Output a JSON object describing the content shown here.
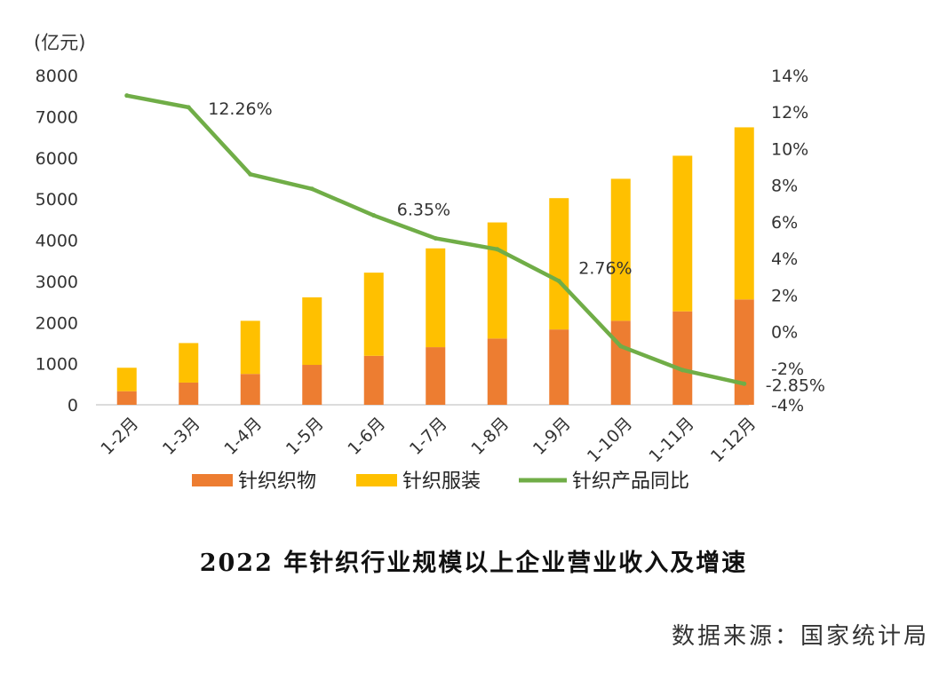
{
  "chart_data": {
    "type": "bar",
    "stacked": true,
    "categories": [
      "1-2月",
      "1-3月",
      "1-4月",
      "1-5月",
      "1-6月",
      "1-7月",
      "1-8月",
      "1-9月",
      "1-10月",
      "1-11月",
      "1-12月"
    ],
    "series": [
      {
        "name": "针织织物",
        "type": "bar",
        "axis": "left",
        "color": "#ED7D31",
        "values": [
          330,
          540,
          750,
          970,
          1190,
          1400,
          1610,
          1830,
          2040,
          2270,
          2560
        ]
      },
      {
        "name": "针织服装",
        "type": "bar",
        "axis": "left",
        "color": "#FFC000",
        "values": [
          570,
          960,
          1290,
          1640,
          2020,
          2400,
          2820,
          3190,
          3450,
          3780,
          4180
        ]
      },
      {
        "name": "针织产品同比",
        "type": "line",
        "axis": "right",
        "color": "#70AD47",
        "values": [
          12.9,
          12.26,
          8.6,
          7.8,
          6.35,
          5.1,
          4.5,
          2.76,
          -0.8,
          -2.1,
          -2.85
        ]
      }
    ],
    "annotations": [
      {
        "index": 1,
        "text": "12.26%"
      },
      {
        "index": 4,
        "text": "6.35%"
      },
      {
        "index": 7,
        "text": "2.76%"
      },
      {
        "index": 10,
        "text": "-2.85%"
      }
    ],
    "yunit": "(亿元)",
    "ylim": [
      0,
      8000
    ],
    "yticks": [
      "0",
      "1000",
      "2000",
      "3000",
      "4000",
      "5000",
      "6000",
      "7000",
      "8000"
    ],
    "y2lim": [
      -4,
      14
    ],
    "y2ticks": [
      "-4%",
      "-2%",
      "0%",
      "2%",
      "4%",
      "6%",
      "8%",
      "10%",
      "12%",
      "14%"
    ],
    "legend_position": "bottom",
    "grid": false
  },
  "caption": {
    "title": "2022 年针织行业规模以上企业营业收入及增速",
    "source": "数据来源：国家统计局"
  }
}
